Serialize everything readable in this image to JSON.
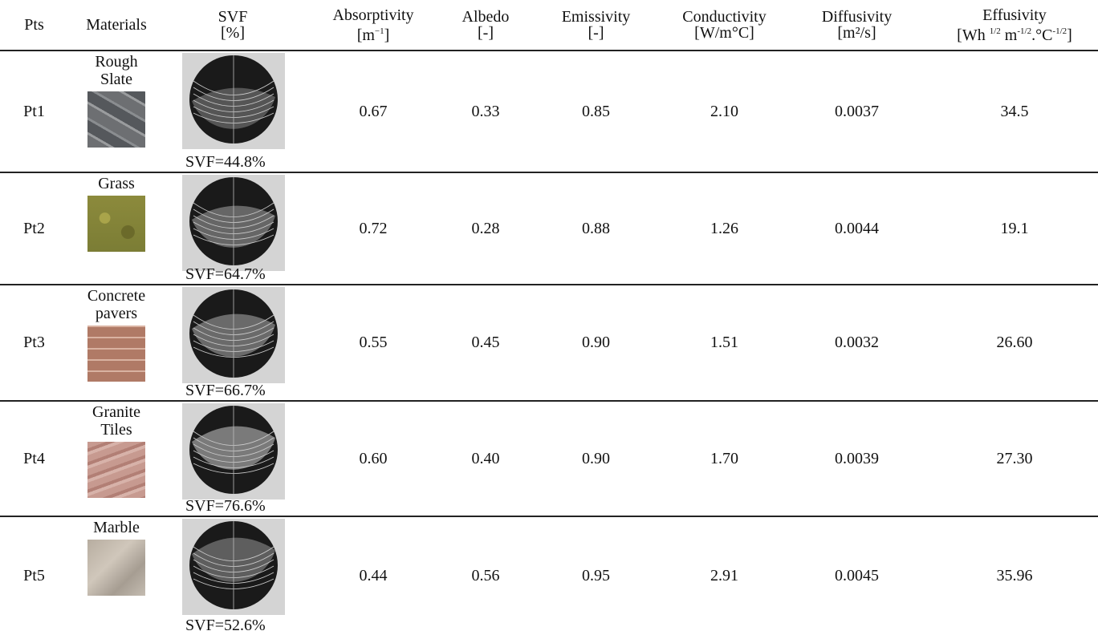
{
  "table": {
    "header": [
      {
        "line1": "Pts"
      },
      {
        "line1": "Materials"
      },
      {
        "line1": "SVF",
        "unit": [
          "[%]"
        ]
      },
      {
        "line1": "Absorptivity",
        "unit": [
          "[m",
          "−1",
          "]"
        ]
      },
      {
        "line1": "Albedo",
        "unit": [
          "[-]"
        ]
      },
      {
        "line1": "Emissivity",
        "unit": [
          "[-]"
        ]
      },
      {
        "line1": "Conductivity",
        "unit": [
          "[W/m°C]"
        ]
      },
      {
        "line1": "Diffusivity",
        "unit": [
          "[m²/s]"
        ]
      },
      {
        "line1": "Effusivity",
        "unit": [
          "[Wh ",
          "1/2",
          " m",
          "-1/2",
          ".°C",
          "-1/2",
          "]"
        ]
      }
    ],
    "rows": [
      {
        "pt": "Pt1",
        "material": "Rough Slate",
        "svf": "SVF=44.8%",
        "values": [
          "0.67",
          "0.33",
          "0.85",
          "2.10",
          "0.0037",
          "34.5"
        ]
      },
      {
        "pt": "Pt2",
        "material": "Grass",
        "svf": "SVF=64.7%",
        "values": [
          "0.72",
          "0.28",
          "0.88",
          "1.26",
          "0.0044",
          "19.1"
        ]
      },
      {
        "pt": "Pt3",
        "material": "Concrete pavers",
        "svf": "SVF=66.7%",
        "values": [
          "0.55",
          "0.45",
          "0.90",
          "1.51",
          "0.0032",
          "26.60"
        ]
      },
      {
        "pt": "Pt4",
        "material": "Granite Tiles",
        "svf": "SVF=76.6%",
        "values": [
          "0.60",
          "0.40",
          "0.90",
          "1.70",
          "0.0039",
          "27.30"
        ]
      },
      {
        "pt": "Pt5",
        "material": "Marble",
        "svf": "SVF=52.6%",
        "values": [
          "0.44",
          "0.56",
          "0.95",
          "2.91",
          "0.0045",
          "35.96"
        ]
      }
    ]
  }
}
